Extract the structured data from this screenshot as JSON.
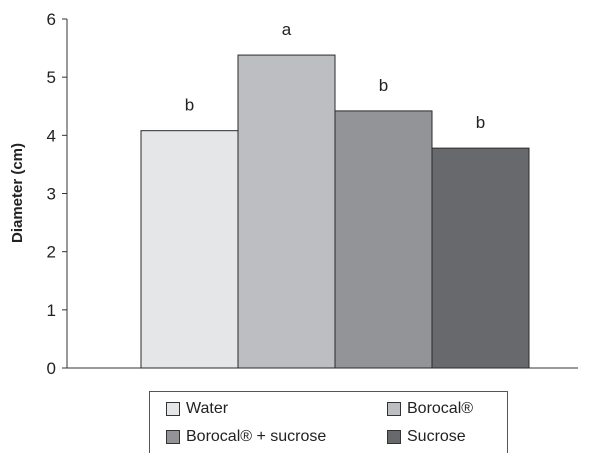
{
  "chart_data": {
    "type": "bar",
    "categories": [
      "Water",
      "Borocal®",
      "Borocal® + sucrose",
      "Sucrose"
    ],
    "values": [
      4.08,
      5.38,
      4.42,
      3.78
    ],
    "significance_labels": [
      "b",
      "a",
      "b",
      "b"
    ],
    "colors": [
      "#e5e6e7",
      "#bdbec1",
      "#939497",
      "#68696c"
    ],
    "title": "",
    "xlabel": "",
    "ylabel": "Diameter (cm)",
    "ylim": [
      0,
      6
    ],
    "yticks": [
      "0",
      "1",
      "2",
      "3",
      "4",
      "5",
      "6"
    ],
    "grid": false,
    "legend": {
      "placement": "bottom",
      "entries": [
        "Water",
        "Borocal®",
        "Borocal® + sucrose",
        "Sucrose"
      ]
    }
  }
}
